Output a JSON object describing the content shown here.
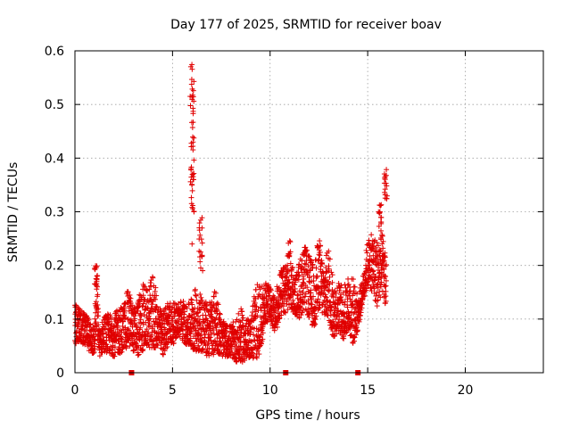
{
  "colors": {
    "series": "#e00000",
    "grid": "#a0a0a0",
    "axis": "#000000",
    "background": "#ffffff"
  },
  "chart_data": {
    "type": "scatter",
    "title": "Day 177 of 2025, SRMTID for receiver boav",
    "xlabel": "GPS time / hours",
    "ylabel": "SRMTID / TECUs",
    "xlim": [
      0,
      24
    ],
    "ylim": [
      0,
      0.6
    ],
    "x_ticks": [
      0,
      5,
      10,
      15,
      20
    ],
    "x_tick_labels": [
      "0",
      "5",
      "10",
      "15",
      "20"
    ],
    "y_ticks": [
      0,
      0.1,
      0.2,
      0.3,
      0.4,
      0.5,
      0.6
    ],
    "y_tick_labels": [
      "0",
      "0.1",
      "0.2",
      "0.3",
      "0.4",
      "0.5",
      "0.6"
    ],
    "grid": true,
    "marker": "+",
    "series": [
      {
        "name": "SRMTID",
        "envelope": [
          [
            0.0,
            0.05,
            0.13
          ],
          [
            0.25,
            0.06,
            0.12
          ],
          [
            0.5,
            0.05,
            0.11
          ],
          [
            0.75,
            0.04,
            0.1
          ],
          [
            1.0,
            0.03,
            0.09
          ],
          [
            1.1,
            0.08,
            0.2
          ],
          [
            1.25,
            0.03,
            0.08
          ],
          [
            1.5,
            0.04,
            0.11
          ],
          [
            2.0,
            0.03,
            0.11
          ],
          [
            2.5,
            0.04,
            0.13
          ],
          [
            2.75,
            0.05,
            0.16
          ],
          [
            3.0,
            0.04,
            0.12
          ],
          [
            3.25,
            0.03,
            0.14
          ],
          [
            3.5,
            0.04,
            0.17
          ],
          [
            3.75,
            0.05,
            0.15
          ],
          [
            4.0,
            0.04,
            0.19
          ],
          [
            4.25,
            0.05,
            0.13
          ],
          [
            4.5,
            0.03,
            0.11
          ],
          [
            4.75,
            0.05,
            0.14
          ],
          [
            5.0,
            0.05,
            0.13
          ],
          [
            5.25,
            0.07,
            0.13
          ],
          [
            5.5,
            0.06,
            0.14
          ],
          [
            5.75,
            0.05,
            0.12
          ],
          [
            6.0,
            0.04,
            0.15
          ],
          [
            6.25,
            0.04,
            0.16
          ],
          [
            6.5,
            0.04,
            0.15
          ],
          [
            6.75,
            0.03,
            0.13
          ],
          [
            7.0,
            0.03,
            0.14
          ],
          [
            7.25,
            0.04,
            0.16
          ],
          [
            7.5,
            0.03,
            0.1
          ],
          [
            7.75,
            0.03,
            0.09
          ],
          [
            8.0,
            0.03,
            0.09
          ],
          [
            8.25,
            0.02,
            0.1
          ],
          [
            8.5,
            0.02,
            0.12
          ],
          [
            8.75,
            0.02,
            0.1
          ],
          [
            9.0,
            0.03,
            0.1
          ],
          [
            9.25,
            0.02,
            0.17
          ],
          [
            9.5,
            0.04,
            0.16
          ],
          [
            9.75,
            0.09,
            0.17
          ],
          [
            10.0,
            0.1,
            0.16
          ],
          [
            10.25,
            0.07,
            0.14
          ],
          [
            10.5,
            0.1,
            0.19
          ],
          [
            10.75,
            0.11,
            0.2
          ],
          [
            11.0,
            0.12,
            0.26
          ],
          [
            11.25,
            0.11,
            0.17
          ],
          [
            11.5,
            0.1,
            0.21
          ],
          [
            11.75,
            0.12,
            0.24
          ],
          [
            12.0,
            0.1,
            0.22
          ],
          [
            12.25,
            0.08,
            0.2
          ],
          [
            12.5,
            0.12,
            0.26
          ],
          [
            12.75,
            0.1,
            0.2
          ],
          [
            13.0,
            0.1,
            0.24
          ],
          [
            13.25,
            0.06,
            0.17
          ],
          [
            13.5,
            0.08,
            0.17
          ],
          [
            13.75,
            0.06,
            0.16
          ],
          [
            14.0,
            0.08,
            0.18
          ],
          [
            14.25,
            0.05,
            0.18
          ],
          [
            14.5,
            0.08,
            0.14
          ],
          [
            14.75,
            0.13,
            0.18
          ],
          [
            15.0,
            0.16,
            0.25
          ],
          [
            15.25,
            0.15,
            0.26
          ],
          [
            15.5,
            0.12,
            0.25
          ],
          [
            15.75,
            0.15,
            0.26
          ],
          [
            15.95,
            0.12,
            0.22
          ]
        ],
        "bursts": [
          {
            "x": 5.9,
            "x_end": 6.1,
            "y_min": 0.3,
            "y_max": 0.59
          },
          {
            "x": 6.35,
            "x_end": 6.55,
            "y_min": 0.19,
            "y_max": 0.29
          },
          {
            "x": 15.55,
            "x_end": 15.7,
            "y_min": 0.26,
            "y_max": 0.32
          },
          {
            "x": 15.85,
            "x_end": 16.0,
            "y_min": 0.31,
            "y_max": 0.38
          },
          {
            "x": 1.0,
            "x_end": 1.15,
            "y_min": 0.15,
            "y_max": 0.2
          }
        ],
        "isolated_points": [
          [
            6.05,
            0.43
          ],
          [
            6.08,
            0.36
          ],
          [
            6.0,
            0.24
          ],
          [
            6.1,
            0.3
          ],
          [
            15.85,
            0.14
          ],
          [
            15.9,
            0.13
          ]
        ]
      }
    ],
    "data_gaps_at_zero": [
      2.9,
      10.8,
      14.5
    ]
  }
}
